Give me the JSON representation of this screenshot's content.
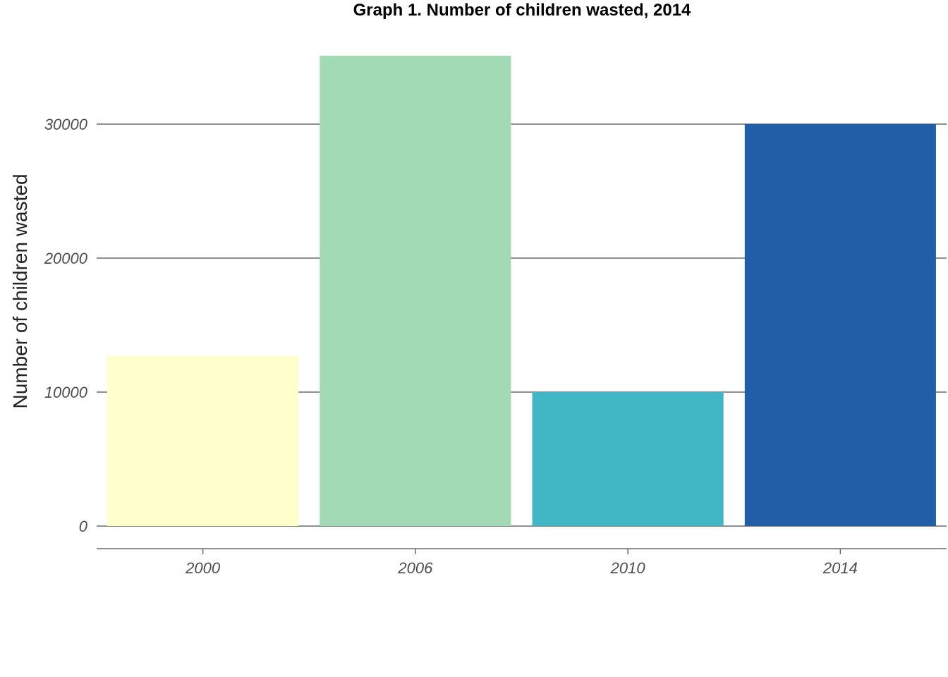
{
  "chart_data": {
    "type": "bar",
    "title": "Graph 1. Number of children wasted, 2014",
    "xlabel": "",
    "ylabel": "Number of children wasted",
    "categories": [
      "2000",
      "2006",
      "2010",
      "2014"
    ],
    "values": [
      12700,
      35100,
      10000,
      30000
    ],
    "colors": [
      "#ffffcc",
      "#a1dab4",
      "#41b6c4",
      "#225ea8"
    ],
    "yticks": [
      0,
      10000,
      20000,
      30000
    ],
    "ytick_labels": [
      "0",
      "10000",
      "20000",
      "30000"
    ],
    "ylim": [
      -1700,
      36500
    ],
    "grid": "horizontal",
    "legend": "none"
  }
}
